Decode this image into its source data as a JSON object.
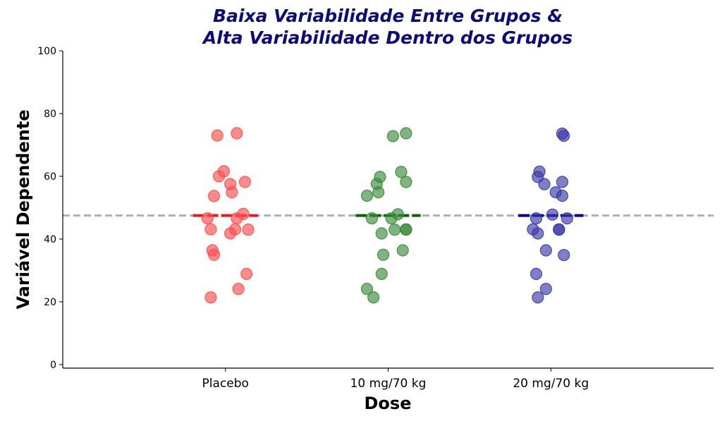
{
  "chart_data": {
    "type": "scatter",
    "title_lines": [
      "Baixa Variabilidade Entre Grupos &",
      "Alta Variabilidade Dentro dos Grupos"
    ],
    "xlabel": "Dose",
    "ylabel": "Variável Dependente",
    "ylim": [
      0,
      100
    ],
    "yticks": [
      0,
      20,
      40,
      60,
      80,
      100
    ],
    "categories": [
      "Placebo",
      "10 mg/70 kg",
      "20 mg/70 kg"
    ],
    "grand_mean": 47.5,
    "grid": false,
    "legend": "none",
    "colors": {
      "title": "#0b0b7a",
      "grand_mean_line": "#b0b0b0",
      "group_means": [
        "#e41a1c",
        "#006400",
        "#00008b"
      ],
      "points": [
        "#ff4d4d",
        "#3a8a3a",
        "#3a3aa8"
      ]
    },
    "series": [
      {
        "category": "Placebo",
        "mean": 47.5,
        "points": [
          {
            "x": -0.05,
            "y": 73.0
          },
          {
            "x": 0.07,
            "y": 73.7
          },
          {
            "x": -0.01,
            "y": 61.6
          },
          {
            "x": -0.04,
            "y": 60.0
          },
          {
            "x": 0.12,
            "y": 58.2
          },
          {
            "x": 0.03,
            "y": 57.5
          },
          {
            "x": 0.04,
            "y": 54.9
          },
          {
            "x": -0.07,
            "y": 53.7
          },
          {
            "x": 0.11,
            "y": 48.0
          },
          {
            "x": 0.07,
            "y": 46.6
          },
          {
            "x": -0.11,
            "y": 46.6
          },
          {
            "x": -0.09,
            "y": 43.1
          },
          {
            "x": 0.06,
            "y": 43.1
          },
          {
            "x": 0.14,
            "y": 43.0
          },
          {
            "x": 0.03,
            "y": 41.8
          },
          {
            "x": -0.08,
            "y": 36.4
          },
          {
            "x": -0.07,
            "y": 35.0
          },
          {
            "x": 0.13,
            "y": 28.9
          },
          {
            "x": 0.08,
            "y": 24.1
          },
          {
            "x": -0.09,
            "y": 21.4
          }
        ]
      },
      {
        "category": "10 mg/70 kg",
        "mean": 47.5,
        "points": [
          {
            "x": 0.03,
            "y": 72.8
          },
          {
            "x": 0.11,
            "y": 73.7
          },
          {
            "x": 0.08,
            "y": 61.4
          },
          {
            "x": -0.05,
            "y": 59.8
          },
          {
            "x": 0.11,
            "y": 58.2
          },
          {
            "x": -0.07,
            "y": 57.6
          },
          {
            "x": -0.06,
            "y": 54.9
          },
          {
            "x": -0.13,
            "y": 53.8
          },
          {
            "x": 0.06,
            "y": 47.9
          },
          {
            "x": 0.02,
            "y": 46.6
          },
          {
            "x": -0.1,
            "y": 46.6
          },
          {
            "x": 0.11,
            "y": 43.1
          },
          {
            "x": 0.04,
            "y": 43.0
          },
          {
            "x": 0.11,
            "y": 43.0
          },
          {
            "x": -0.04,
            "y": 41.8
          },
          {
            "x": 0.09,
            "y": 36.4
          },
          {
            "x": -0.03,
            "y": 35.0
          },
          {
            "x": -0.04,
            "y": 28.9
          },
          {
            "x": -0.13,
            "y": 24.1
          },
          {
            "x": -0.09,
            "y": 21.4
          }
        ]
      },
      {
        "category": "20 mg/70 kg",
        "mean": 47.5,
        "points": [
          {
            "x": 0.07,
            "y": 73.6
          },
          {
            "x": 0.08,
            "y": 72.9
          },
          {
            "x": -0.07,
            "y": 61.5
          },
          {
            "x": -0.08,
            "y": 59.8
          },
          {
            "x": 0.07,
            "y": 58.2
          },
          {
            "x": -0.04,
            "y": 57.5
          },
          {
            "x": 0.03,
            "y": 54.9
          },
          {
            "x": 0.07,
            "y": 53.8
          },
          {
            "x": 0.01,
            "y": 47.8
          },
          {
            "x": -0.09,
            "y": 46.6
          },
          {
            "x": 0.1,
            "y": 46.6
          },
          {
            "x": -0.11,
            "y": 43.1
          },
          {
            "x": 0.05,
            "y": 43.0
          },
          {
            "x": 0.05,
            "y": 43.1
          },
          {
            "x": -0.08,
            "y": 41.8
          },
          {
            "x": -0.03,
            "y": 36.4
          },
          {
            "x": 0.08,
            "y": 34.9
          },
          {
            "x": -0.09,
            "y": 28.9
          },
          {
            "x": -0.03,
            "y": 24.1
          },
          {
            "x": -0.08,
            "y": 21.4
          }
        ]
      }
    ]
  }
}
